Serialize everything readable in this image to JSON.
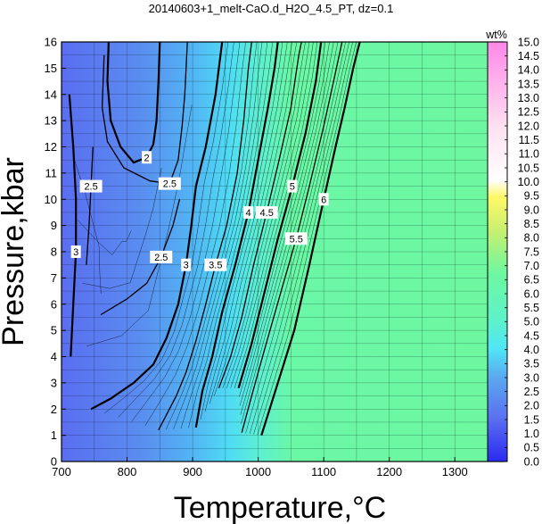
{
  "chart_data": {
    "type": "heatmap",
    "title": "20140603+1_melt-CaO.d_H2O_4.5_PT, dz=0.1",
    "xlabel": "Temperature,°C",
    "ylabel": "Pressure,kbar",
    "xlim": [
      700,
      1350
    ],
    "ylim": [
      0,
      16
    ],
    "x_ticks": [
      "700",
      "800",
      "900",
      "1000",
      "1100",
      "1200",
      "1300"
    ],
    "y_ticks": [
      "0",
      "1",
      "2",
      "3",
      "4",
      "5",
      "6",
      "7",
      "8",
      "9",
      "10",
      "11",
      "12",
      "13",
      "14",
      "15",
      "16"
    ],
    "grid": true,
    "colorbar": {
      "title": "wt%",
      "range": [
        0.0,
        15.0
      ],
      "ticks": [
        "0.0",
        "0.5",
        "1.0",
        "1.5",
        "2.0",
        "2.5",
        "3.0",
        "3.5",
        "4.0",
        "4.5",
        "5.0",
        "5.5",
        "6.0",
        "6.5",
        "7.0",
        "7.5",
        "8.0",
        "8.5",
        "9.0",
        "9.5",
        "10.0",
        "10.5",
        "11.0",
        "11.5",
        "12.0",
        "12.5",
        "13.0",
        "13.5",
        "14.0",
        "14.5",
        "15.0"
      ],
      "placement": "right"
    },
    "plateau_value": 7.2,
    "contours": [
      {
        "level": 2,
        "label": "2",
        "points": [
          [
            772,
            16
          ],
          [
            770,
            14.5
          ],
          [
            775,
            13
          ],
          [
            790,
            12
          ],
          [
            810,
            11.4
          ],
          [
            830,
            11.6
          ],
          [
            840,
            12.1
          ],
          [
            845,
            13
          ],
          [
            848,
            14.5
          ],
          [
            850,
            16
          ]
        ]
      },
      {
        "level": 2.5,
        "label": "2.5",
        "points": [
          [
            765,
            15.5
          ],
          [
            762,
            13.5
          ],
          [
            770,
            12.2
          ],
          [
            795,
            11.2
          ],
          [
            835,
            10.7
          ],
          [
            865,
            10.6
          ],
          [
            878,
            11.5
          ],
          [
            884,
            12.8
          ],
          [
            888,
            14
          ],
          [
            892,
            16
          ]
        ]
      },
      {
        "level": 2.5,
        "label": "2.5",
        "points": [
          [
            738,
            7.5
          ],
          [
            742,
            9
          ],
          [
            745,
            10.5
          ],
          [
            748,
            12
          ]
        ]
      },
      {
        "level": 2.5,
        "label": "2.5",
        "points": [
          [
            760,
            5.6
          ],
          [
            800,
            6.2
          ],
          [
            830,
            6.8
          ],
          [
            852,
            7.8
          ],
          [
            870,
            9
          ],
          [
            880,
            10
          ]
        ]
      },
      {
        "level": 3,
        "label": "3",
        "points": [
          [
            712,
            14
          ],
          [
            718,
            12
          ],
          [
            722,
            10
          ],
          [
            722,
            8
          ],
          [
            718,
            6
          ],
          [
            714,
            4
          ]
        ]
      },
      {
        "level": 3,
        "label": "3",
        "points": [
          [
            745,
            2
          ],
          [
            775,
            2.4
          ],
          [
            810,
            3
          ],
          [
            840,
            3.7
          ],
          [
            860,
            4.7
          ],
          [
            878,
            6
          ],
          [
            890,
            7.5
          ],
          [
            898,
            9
          ],
          [
            905,
            10.5
          ],
          [
            920,
            12
          ],
          [
            935,
            14
          ],
          [
            945,
            16
          ]
        ]
      },
      {
        "level": 3.5,
        "label": "3.5",
        "points": [
          [
            848,
            1.2
          ],
          [
            875,
            2.5
          ],
          [
            890,
            3.4
          ],
          [
            905,
            4.6
          ],
          [
            920,
            6
          ],
          [
            935,
            7.5
          ],
          [
            952,
            9
          ],
          [
            968,
            11
          ],
          [
            978,
            13
          ],
          [
            985,
            15
          ],
          [
            990,
            16
          ]
        ]
      },
      {
        "level": 4,
        "label": "4",
        "points": [
          [
            905,
            1.3
          ],
          [
            915,
            2.7
          ],
          [
            930,
            4
          ],
          [
            945,
            5.7
          ],
          [
            965,
            7.5
          ],
          [
            985,
            9.5
          ],
          [
            1000,
            11.5
          ],
          [
            1015,
            13.5
          ],
          [
            1025,
            15
          ],
          [
            1030,
            16
          ]
        ]
      },
      {
        "level": 4.5,
        "label": "4.5",
        "points": [
          [
            940,
            2.8
          ],
          [
            958,
            4
          ],
          [
            975,
            5.5
          ],
          [
            993,
            7.5
          ],
          [
            1013,
            9.5
          ],
          [
            1032,
            11.5
          ],
          [
            1050,
            13.5
          ],
          [
            1062,
            15.5
          ],
          [
            1066,
            16
          ]
        ]
      },
      {
        "level": 5,
        "label": "5",
        "points": [
          [
            970,
            2.8
          ],
          [
            990,
            4.5
          ],
          [
            1010,
            6.5
          ],
          [
            1030,
            8.5
          ],
          [
            1052,
            10.5
          ],
          [
            1072,
            12.5
          ],
          [
            1088,
            14.5
          ],
          [
            1096,
            16
          ]
        ]
      },
      {
        "level": 5.5,
        "label": "5.5",
        "points": [
          [
            975,
            1.1
          ],
          [
            990,
            2.5
          ],
          [
            1010,
            4.3
          ],
          [
            1035,
            6.5
          ],
          [
            1058,
            8.5
          ],
          [
            1078,
            10.5
          ],
          [
            1100,
            12.8
          ],
          [
            1115,
            14.5
          ],
          [
            1128,
            16
          ]
        ]
      },
      {
        "level": 6,
        "label": "6",
        "points": [
          [
            1005,
            1
          ],
          [
            1030,
            3
          ],
          [
            1055,
            5
          ],
          [
            1078,
            7.5
          ],
          [
            1100,
            10
          ],
          [
            1118,
            12
          ],
          [
            1132,
            13.5
          ],
          [
            1145,
            15
          ],
          [
            1155,
            16
          ]
        ]
      }
    ]
  }
}
